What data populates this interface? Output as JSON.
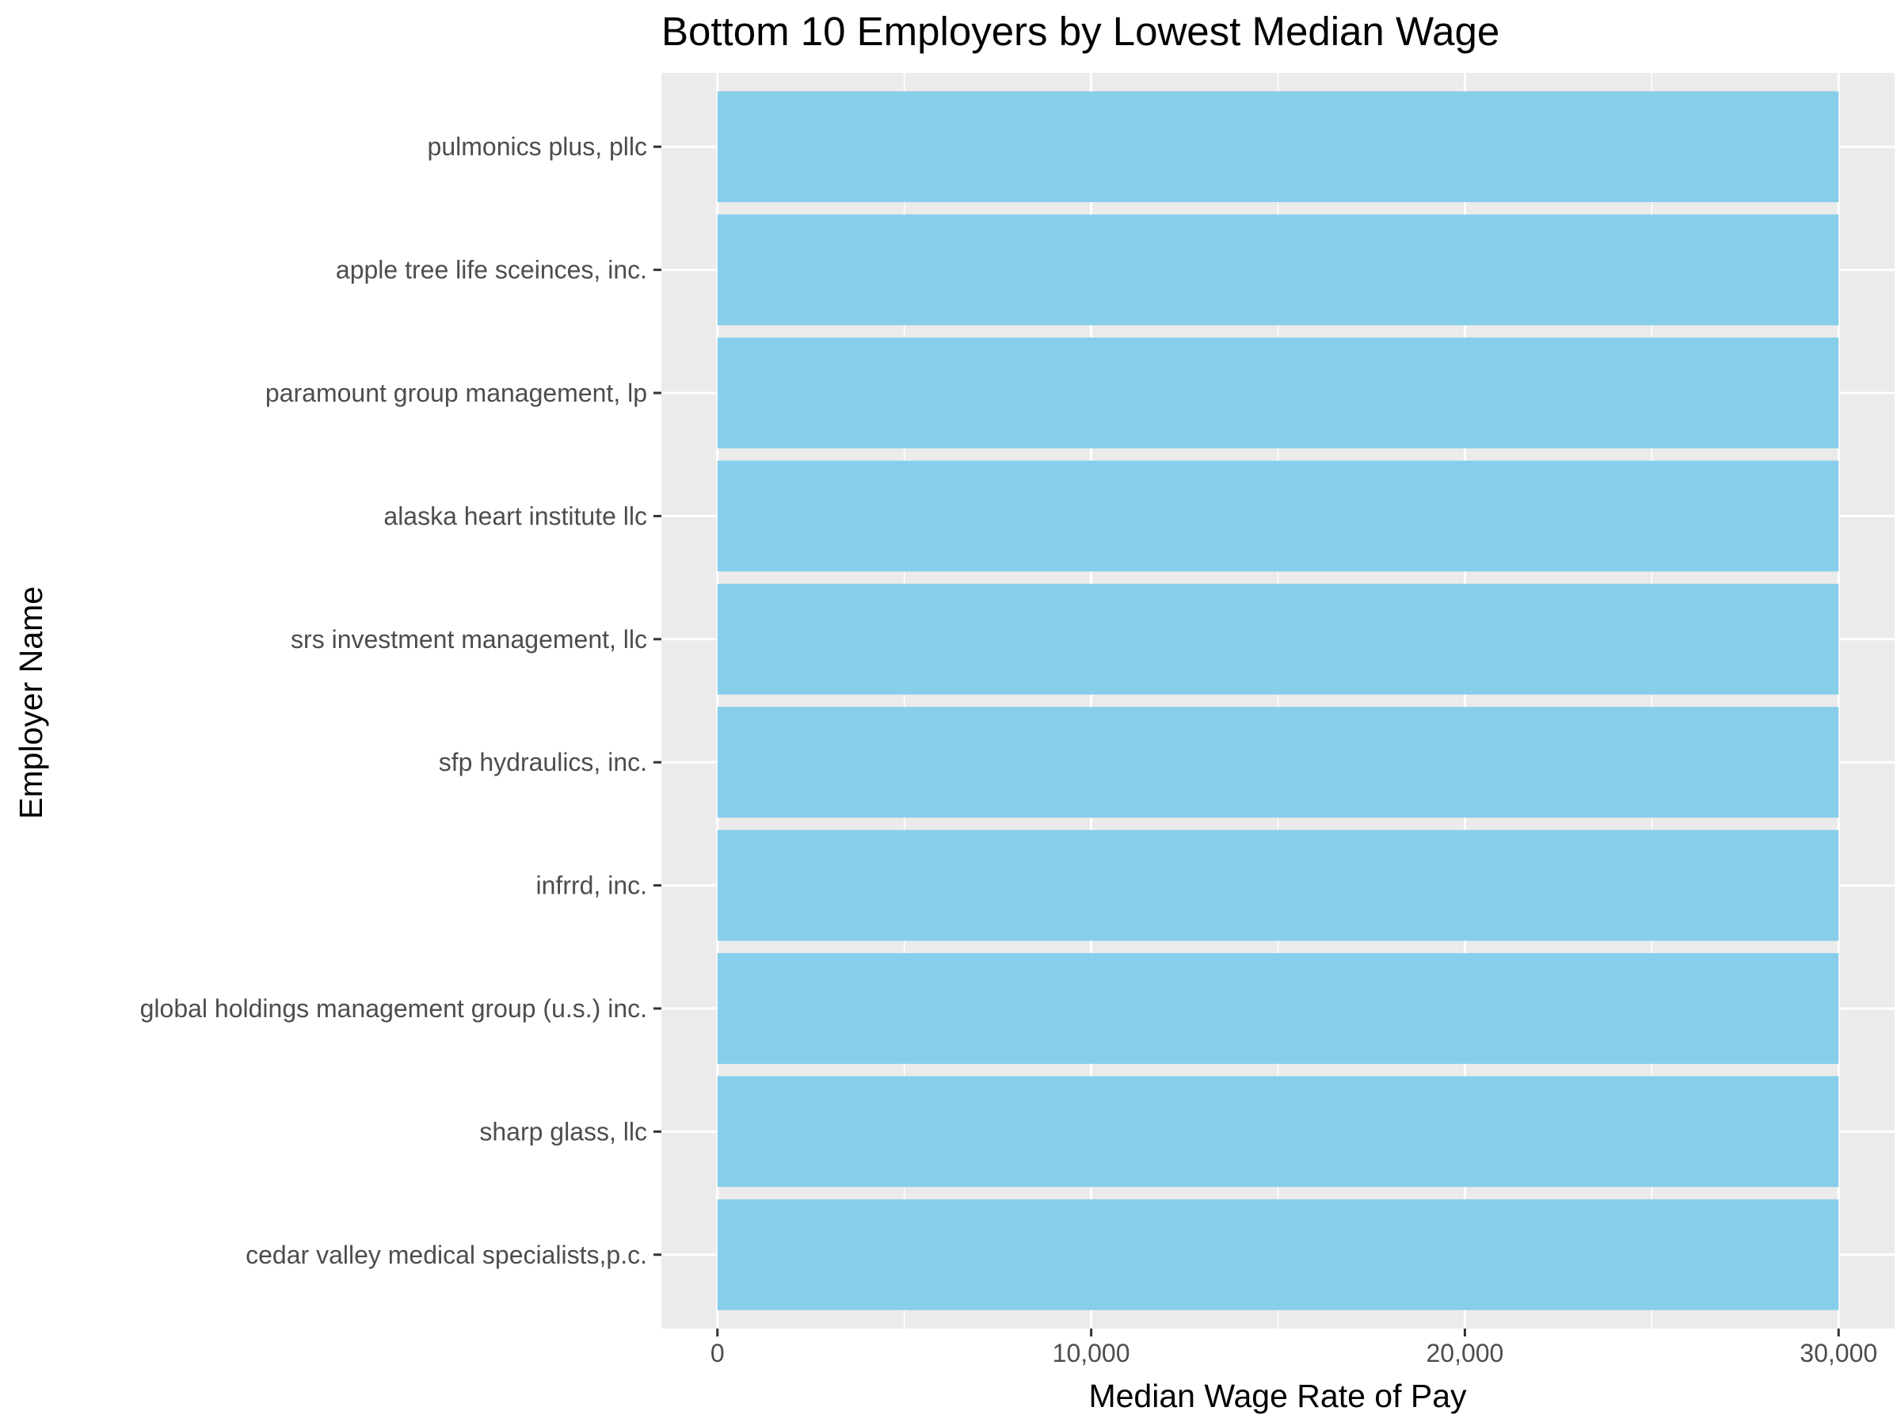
{
  "chart_data": {
    "type": "bar",
    "orientation": "horizontal",
    "title": "Bottom 10 Employers by Lowest Median Wage",
    "xlabel": "Median Wage Rate of Pay",
    "ylabel": "Employer Name",
    "categories": [
      "pulmonics plus,  pllc",
      "apple tree life sceinces, inc.",
      "paramount group management, lp",
      "alaska heart institute llc",
      "srs investment management, llc ",
      "sfp hydraulics, inc.",
      "infrrd, inc. ",
      "global holdings management group (u.s.) inc.",
      "sharp glass, llc ",
      "cedar valley medical specialists,p.c."
    ],
    "values": [
      30000,
      30000,
      30000,
      30000,
      30000,
      30000,
      30000,
      30000,
      30000,
      30000
    ],
    "xlim": [
      -1500,
      31500
    ],
    "xticks": [
      0,
      10000,
      20000,
      30000
    ],
    "xtick_labels": [
      "0",
      "10,000",
      "20,000",
      "30,000"
    ],
    "grid": true,
    "legend": "none",
    "colors": {
      "bar": "#87ceeb",
      "panel": "#ebebeb",
      "grid": "#ffffff",
      "tick": "#333333"
    }
  }
}
